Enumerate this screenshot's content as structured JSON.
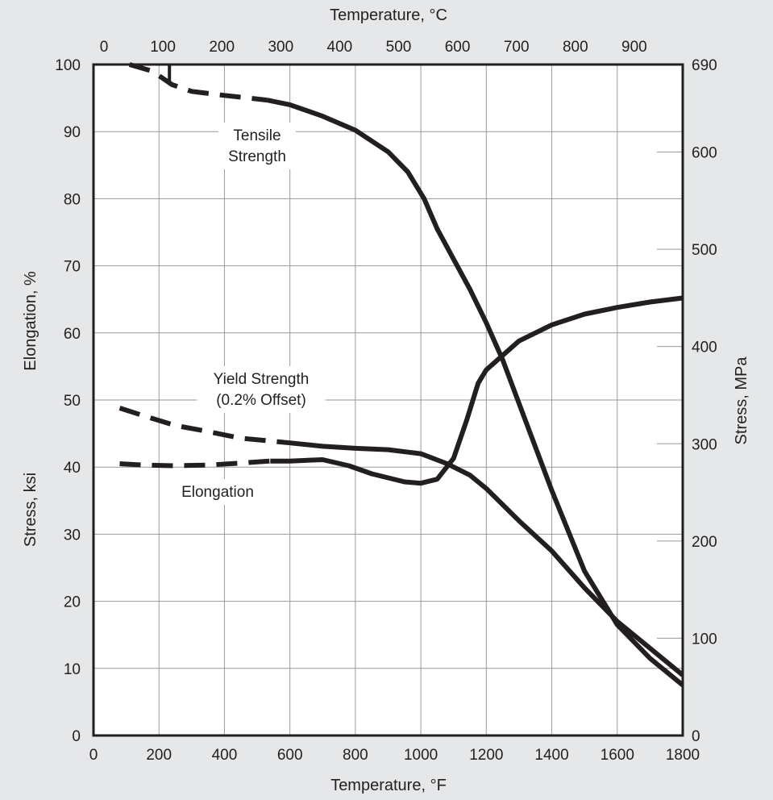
{
  "chart_data": {
    "type": "line",
    "x_axis_bottom": {
      "label": "Temperature, °F",
      "range": [
        0,
        1800
      ],
      "ticks": [
        0,
        200,
        400,
        600,
        800,
        1000,
        1200,
        1400,
        1600,
        1800
      ]
    },
    "x_axis_top": {
      "label": "Temperature, °C",
      "ticks": [
        0,
        100,
        200,
        300,
        400,
        500,
        600,
        700,
        800,
        900
      ]
    },
    "y_axis_left": {
      "labels": [
        "Elongation, %",
        "Stress, ksi"
      ],
      "range": [
        0,
        100
      ],
      "ticks": [
        0,
        10,
        20,
        30,
        40,
        50,
        60,
        70,
        80,
        90,
        100
      ]
    },
    "y_axis_right": {
      "label": "Stress, MPa",
      "range": [
        0,
        690
      ],
      "ticks": [
        0,
        100,
        200,
        300,
        400,
        500,
        600,
        690
      ]
    },
    "grid": true,
    "series": [
      {
        "name": "Tensile Strength",
        "dashed_segment": [
          [
            110,
            100
          ],
          [
            180,
            99
          ],
          [
            240,
            97
          ],
          [
            300,
            96
          ],
          [
            400,
            95.4
          ],
          [
            530,
            94.7
          ]
        ],
        "solid_segment": [
          [
            530,
            94.7
          ],
          [
            600,
            94
          ],
          [
            700,
            92.3
          ],
          [
            800,
            90.2
          ],
          [
            900,
            87
          ],
          [
            960,
            84
          ],
          [
            1010,
            80
          ],
          [
            1050,
            75.5
          ],
          [
            1100,
            71
          ],
          [
            1150,
            66.5
          ],
          [
            1200,
            61.5
          ],
          [
            1250,
            56
          ],
          [
            1300,
            49.5
          ],
          [
            1400,
            36.5
          ],
          [
            1500,
            24.5
          ],
          [
            1550,
            20.5
          ],
          [
            1600,
            16.5
          ],
          [
            1700,
            11.5
          ],
          [
            1800,
            7.5
          ]
        ],
        "step": [
          [
            232,
            100
          ],
          [
            232,
            97
          ]
        ]
      },
      {
        "name": "Yield Strength (0.2% Offset)",
        "dashed_segment": [
          [
            80,
            48.8
          ],
          [
            150,
            47.7
          ],
          [
            250,
            46.2
          ],
          [
            350,
            45.3
          ],
          [
            450,
            44.3
          ],
          [
            560,
            43.8
          ]
        ],
        "solid_segment": [
          [
            560,
            43.8
          ],
          [
            600,
            43.6
          ],
          [
            700,
            43.1
          ],
          [
            800,
            42.8
          ],
          [
            900,
            42.6
          ],
          [
            1000,
            42
          ],
          [
            1080,
            40.5
          ],
          [
            1150,
            38.8
          ],
          [
            1200,
            36.8
          ],
          [
            1300,
            32
          ],
          [
            1400,
            27.5
          ],
          [
            1500,
            22
          ],
          [
            1600,
            17
          ],
          [
            1700,
            13
          ],
          [
            1800,
            9
          ]
        ]
      },
      {
        "name": "Elongation",
        "dashed_segment": [
          [
            80,
            40.5
          ],
          [
            150,
            40.3
          ],
          [
            250,
            40.2
          ],
          [
            350,
            40.3
          ],
          [
            450,
            40.6
          ],
          [
            540,
            40.9
          ]
        ],
        "solid_segment": [
          [
            540,
            40.9
          ],
          [
            600,
            40.9
          ],
          [
            700,
            41.1
          ],
          [
            780,
            40.2
          ],
          [
            850,
            39
          ],
          [
            950,
            37.8
          ],
          [
            1000,
            37.6
          ],
          [
            1050,
            38.2
          ],
          [
            1100,
            41.3
          ],
          [
            1140,
            47
          ],
          [
            1175,
            52.5
          ],
          [
            1200,
            54.5
          ],
          [
            1300,
            58.8
          ],
          [
            1400,
            61.2
          ],
          [
            1500,
            62.8
          ],
          [
            1600,
            63.8
          ],
          [
            1700,
            64.6
          ],
          [
            1800,
            65.2
          ]
        ]
      }
    ],
    "annotations": [
      {
        "lines": [
          "Tensile",
          "Strength"
        ]
      },
      {
        "lines": [
          "Yield Strength",
          "(0.2% Offset)"
        ]
      },
      {
        "lines": [
          "Elongation"
        ]
      }
    ]
  }
}
